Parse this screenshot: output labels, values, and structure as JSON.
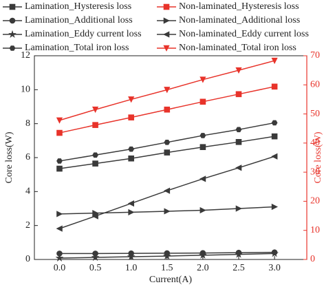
{
  "chart_data": {
    "type": "line",
    "x": [
      {
        "value": 0,
        "label": "0.0"
      },
      0.5,
      {
        "value": 1,
        "label": "1.0"
      },
      1.5,
      {
        "value": 2,
        "label": "2.0"
      },
      2.5,
      {
        "value": 3,
        "label": "3.0"
      }
    ],
    "xlabel": "Current(A)",
    "ylabel": "Core loss(W)",
    "y2label": "Core loss(W)",
    "xlim": [
      -0.35,
      3.45
    ],
    "ylim": [
      0,
      12
    ],
    "yticks": [
      0,
      2,
      4,
      6,
      8,
      10,
      12
    ],
    "y2lim": [
      0,
      70
    ],
    "y2ticks": [
      0,
      10,
      20,
      30,
      40,
      50,
      60,
      70
    ],
    "y2color": "#e8332a",
    "series": [
      {
        "name": "Lamination_Hysteresis loss",
        "color": "#3a3a3a",
        "marker": "square",
        "values": [
          5.35,
          5.65,
          5.95,
          6.3,
          6.62,
          6.92,
          7.25
        ]
      },
      {
        "name": "Non-laminated_Hysteresis loss",
        "color": "#e8332a",
        "marker": "square",
        "axis": "y2",
        "values": [
          43.5,
          46.2,
          48.8,
          51.5,
          54.2,
          56.8,
          59.4
        ]
      },
      {
        "name": "Lamination_Additional loss",
        "color": "#3a3a3a",
        "marker": "circle",
        "values": [
          0.35,
          0.35,
          0.36,
          0.37,
          0.38,
          0.4,
          0.42
        ]
      },
      {
        "name": "Non-laminated_Additional loss",
        "color": "#3a3a3a",
        "marker": "tri-right",
        "values": [
          2.68,
          2.73,
          2.78,
          2.84,
          2.9,
          3.0,
          3.1
        ]
      },
      {
        "name": "Lamination_Eddy current loss",
        "color": "#3a3a3a",
        "marker": "star",
        "values": [
          0.08,
          0.12,
          0.16,
          0.2,
          0.25,
          0.3,
          0.35
        ]
      },
      {
        "name": "Non-laminated_Eddy current loss",
        "color": "#3a3a3a",
        "marker": "tri-left",
        "values": [
          1.82,
          2.55,
          3.3,
          4.05,
          4.75,
          5.4,
          6.07
        ]
      },
      {
        "name": "Lamination_Total iron loss",
        "color": "#3a3a3a",
        "marker": "hexagon",
        "values": [
          5.8,
          6.15,
          6.5,
          6.9,
          7.3,
          7.65,
          8.05
        ]
      },
      {
        "name": "Non-laminated_Total iron loss",
        "color": "#e8332a",
        "marker": "tri-down",
        "axis": "y2",
        "values": [
          47.8,
          51.5,
          55.0,
          58.3,
          61.8,
          65.0,
          68.3
        ]
      }
    ]
  }
}
